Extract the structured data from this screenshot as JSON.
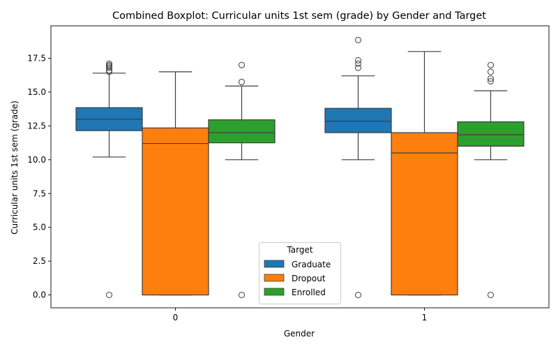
{
  "chart_data": {
    "type": "boxplot",
    "title": "Combined Boxplot: Curricular units 1st sem (grade) by Gender and Target",
    "xlabel": "Gender",
    "ylabel": "Curricular units 1st sem (grade)",
    "categories": [
      "0",
      "1"
    ],
    "ylim": [
      -0.95,
      19.9
    ],
    "yticks": [
      0.0,
      2.5,
      5.0,
      7.5,
      10.0,
      12.5,
      15.0,
      17.5
    ],
    "ytick_labels": [
      "0.0",
      "2.5",
      "5.0",
      "7.5",
      "10.0",
      "12.5",
      "15.0",
      "17.5"
    ],
    "grid": false,
    "legend": {
      "title": "Target",
      "placement": "lower-center",
      "entries": [
        "Graduate",
        "Dropout",
        "Enrolled"
      ]
    },
    "series": [
      {
        "name": "Graduate",
        "color": "#1f77b4",
        "boxes": [
          {
            "q1": 12.15,
            "median": 13.0,
            "q3": 13.85,
            "whisker_low": 10.2,
            "whisker_high": 16.4,
            "outliers": [
              0.0,
              16.5,
              16.6,
              16.8,
              16.9,
              17.0,
              17.1
            ]
          },
          {
            "q1": 12.0,
            "median": 12.85,
            "q3": 13.8,
            "whisker_low": 10.0,
            "whisker_high": 16.2,
            "outliers": [
              0.0,
              16.8,
              17.1,
              17.35,
              18.85
            ]
          }
        ]
      },
      {
        "name": "Dropout",
        "color": "#ff7f0e",
        "boxes": [
          {
            "q1": 0.0,
            "median": 11.2,
            "q3": 12.35,
            "whisker_low": 0.0,
            "whisker_high": 16.5,
            "outliers": []
          },
          {
            "q1": 0.0,
            "median": 10.5,
            "q3": 12.0,
            "whisker_low": 0.0,
            "whisker_high": 18.0,
            "outliers": []
          }
        ]
      },
      {
        "name": "Enrolled",
        "color": "#2ca02c",
        "boxes": [
          {
            "q1": 11.25,
            "median": 12.0,
            "q3": 12.95,
            "whisker_low": 10.0,
            "whisker_high": 15.45,
            "outliers": [
              0.0,
              15.75,
              17.0
            ]
          },
          {
            "q1": 11.0,
            "median": 11.85,
            "q3": 12.8,
            "whisker_low": 10.0,
            "whisker_high": 15.1,
            "outliers": [
              0.0,
              15.8,
              16.0,
              16.5,
              17.0
            ]
          }
        ]
      }
    ]
  }
}
